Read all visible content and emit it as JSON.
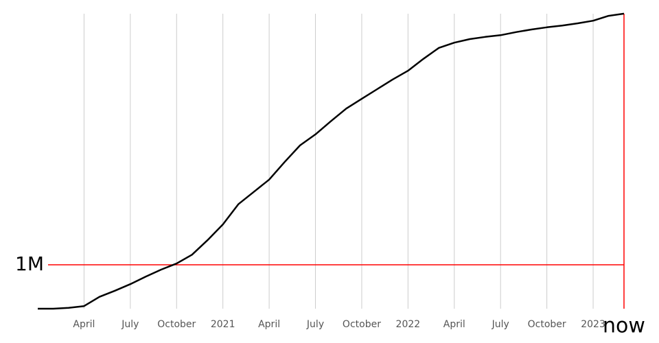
{
  "chart_data": {
    "type": "line",
    "x": [
      "2020-01",
      "2020-02",
      "2020-03",
      "2020-04",
      "2020-05",
      "2020-06",
      "2020-07",
      "2020-08",
      "2020-09",
      "2020-10",
      "2020-11",
      "2020-12",
      "2021-01",
      "2021-02",
      "2021-03",
      "2021-04",
      "2021-05",
      "2021-06",
      "2021-07",
      "2021-08",
      "2021-09",
      "2021-10",
      "2021-11",
      "2021-12",
      "2022-01",
      "2022-02",
      "2022-03",
      "2022-04",
      "2022-05",
      "2022-06",
      "2022-07",
      "2022-08",
      "2022-09",
      "2022-10",
      "2022-11",
      "2022-12",
      "2023-01",
      "2023-02",
      "2023-03"
    ],
    "series": [
      {
        "color": "#000000",
        "values": [
          0,
          0,
          20000,
          60000,
          270000,
          410000,
          560000,
          730000,
          890000,
          1030000,
          1230000,
          1560000,
          1920000,
          2380000,
          2660000,
          2940000,
          3340000,
          3720000,
          3970000,
          4270000,
          4560000,
          4780000,
          5000000,
          5220000,
          5420000,
          5690000,
          5940000,
          6060000,
          6140000,
          6190000,
          6230000,
          6300000,
          6360000,
          6410000,
          6450000,
          6500000,
          6560000,
          6670000,
          6720000
        ]
      }
    ],
    "xlim": [
      "2020-01",
      "2023-03"
    ],
    "xticks": [
      {
        "value": "2020-04",
        "label": "April"
      },
      {
        "value": "2020-07",
        "label": "July"
      },
      {
        "value": "2020-10",
        "label": "October"
      },
      {
        "value": "2021-01",
        "label": "2021"
      },
      {
        "value": "2021-04",
        "label": "April"
      },
      {
        "value": "2021-07",
        "label": "July"
      },
      {
        "value": "2021-10",
        "label": "October"
      },
      {
        "value": "2022-01",
        "label": "2022"
      },
      {
        "value": "2022-04",
        "label": "April"
      },
      {
        "value": "2022-07",
        "label": "July"
      },
      {
        "value": "2022-10",
        "label": "October"
      },
      {
        "value": "2023-01",
        "label": "2023"
      }
    ],
    "ylim": [
      0,
      7000000
    ],
    "reference_line": {
      "value": 1000000,
      "label": "1M",
      "color": "#ff0000"
    },
    "now_marker": {
      "x": "2023-03",
      "label": "now",
      "color": "#ff0000"
    },
    "grid": true
  }
}
